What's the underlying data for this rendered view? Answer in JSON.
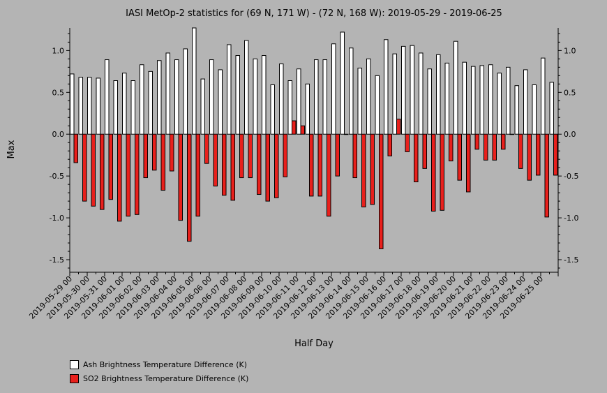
{
  "chart_data": {
    "type": "bar",
    "title": "IASI MetOp-2 statistics for (69 N, 171 W) - (72 N, 168 W): 2019-05-29 - 2019-06-25",
    "xlabel": "Half Day",
    "ylabel": "Max",
    "ylim": [
      -1.65,
      1.27
    ],
    "yticks": [
      -1.5,
      -1.0,
      -0.5,
      0.0,
      0.5,
      1.0
    ],
    "ytick_labels": [
      "-1.5",
      "-1.0",
      "-0.5",
      "0.0",
      "0.5",
      "1.0"
    ],
    "grid": false,
    "x_tick_labels": [
      "2019-05-29 00",
      "2019-05-30 00",
      "2019-05-31 00",
      "2019-06-01 00",
      "2019-06-02 00",
      "2019-06-03 00",
      "2019-06-04 00",
      "2019-06-05 00",
      "2019-06-06 00",
      "2019-06-07 00",
      "2019-06-08 00",
      "2019-06-09 00",
      "2019-06-10 00",
      "2019-06-11 00",
      "2019-06-12 00",
      "2019-06-13 00",
      "2019-06-14 00",
      "2019-06-15 00",
      "2019-06-16 00",
      "2019-06-17 00",
      "2019-06-18 00",
      "2019-06-19 00",
      "2019-06-20 00",
      "2019-06-21 00",
      "2019-06-22 00",
      "2019-06-23 00",
      "2019-06-24 00",
      "2019-06-25 00"
    ],
    "series": [
      {
        "name": "Ash Brightness Temperature Difference (K)",
        "color": "#ffffff",
        "values": [
          0.72,
          0.68,
          0.68,
          0.67,
          0.89,
          0.64,
          0.73,
          0.64,
          0.83,
          0.75,
          0.88,
          0.97,
          0.89,
          1.02,
          1.27,
          0.66,
          0.89,
          0.77,
          1.07,
          0.94,
          1.12,
          0.9,
          0.94,
          0.59,
          0.84,
          0.64,
          0.78,
          0.6,
          0.89,
          0.89,
          1.08,
          1.22,
          1.03,
          0.79,
          0.9,
          0.7,
          1.13,
          0.96,
          1.05,
          1.06,
          0.97,
          0.78,
          0.95,
          0.85,
          1.11,
          0.86,
          0.81,
          0.82,
          0.83,
          0.73,
          0.8,
          0.58,
          0.77,
          0.59,
          0.91,
          0.62
        ]
      },
      {
        "name": "SO2 Brightness Temperature Difference (K)",
        "color": "#e8201c",
        "values": [
          -0.34,
          -0.8,
          -0.86,
          -0.9,
          -0.78,
          -1.04,
          -0.98,
          -0.96,
          -0.52,
          -0.43,
          -0.67,
          -0.44,
          -1.03,
          -1.28,
          -0.98,
          -0.35,
          -0.62,
          -0.73,
          -0.79,
          -0.52,
          -0.52,
          -0.72,
          -0.8,
          -0.76,
          -0.51,
          0.16,
          0.1,
          -0.74,
          -0.74,
          -0.98,
          -0.5,
          0.0,
          -0.52,
          -0.87,
          -0.84,
          -1.37,
          -0.26,
          0.18,
          -0.21,
          -0.57,
          -0.41,
          -0.92,
          -0.91,
          -0.32,
          -0.55,
          -0.69,
          -0.18,
          -0.31,
          -0.31,
          -0.18,
          0.0,
          -0.41,
          -0.55,
          -0.49,
          -0.99,
          -0.49
        ]
      }
    ],
    "legend_position": "bottom-left"
  }
}
